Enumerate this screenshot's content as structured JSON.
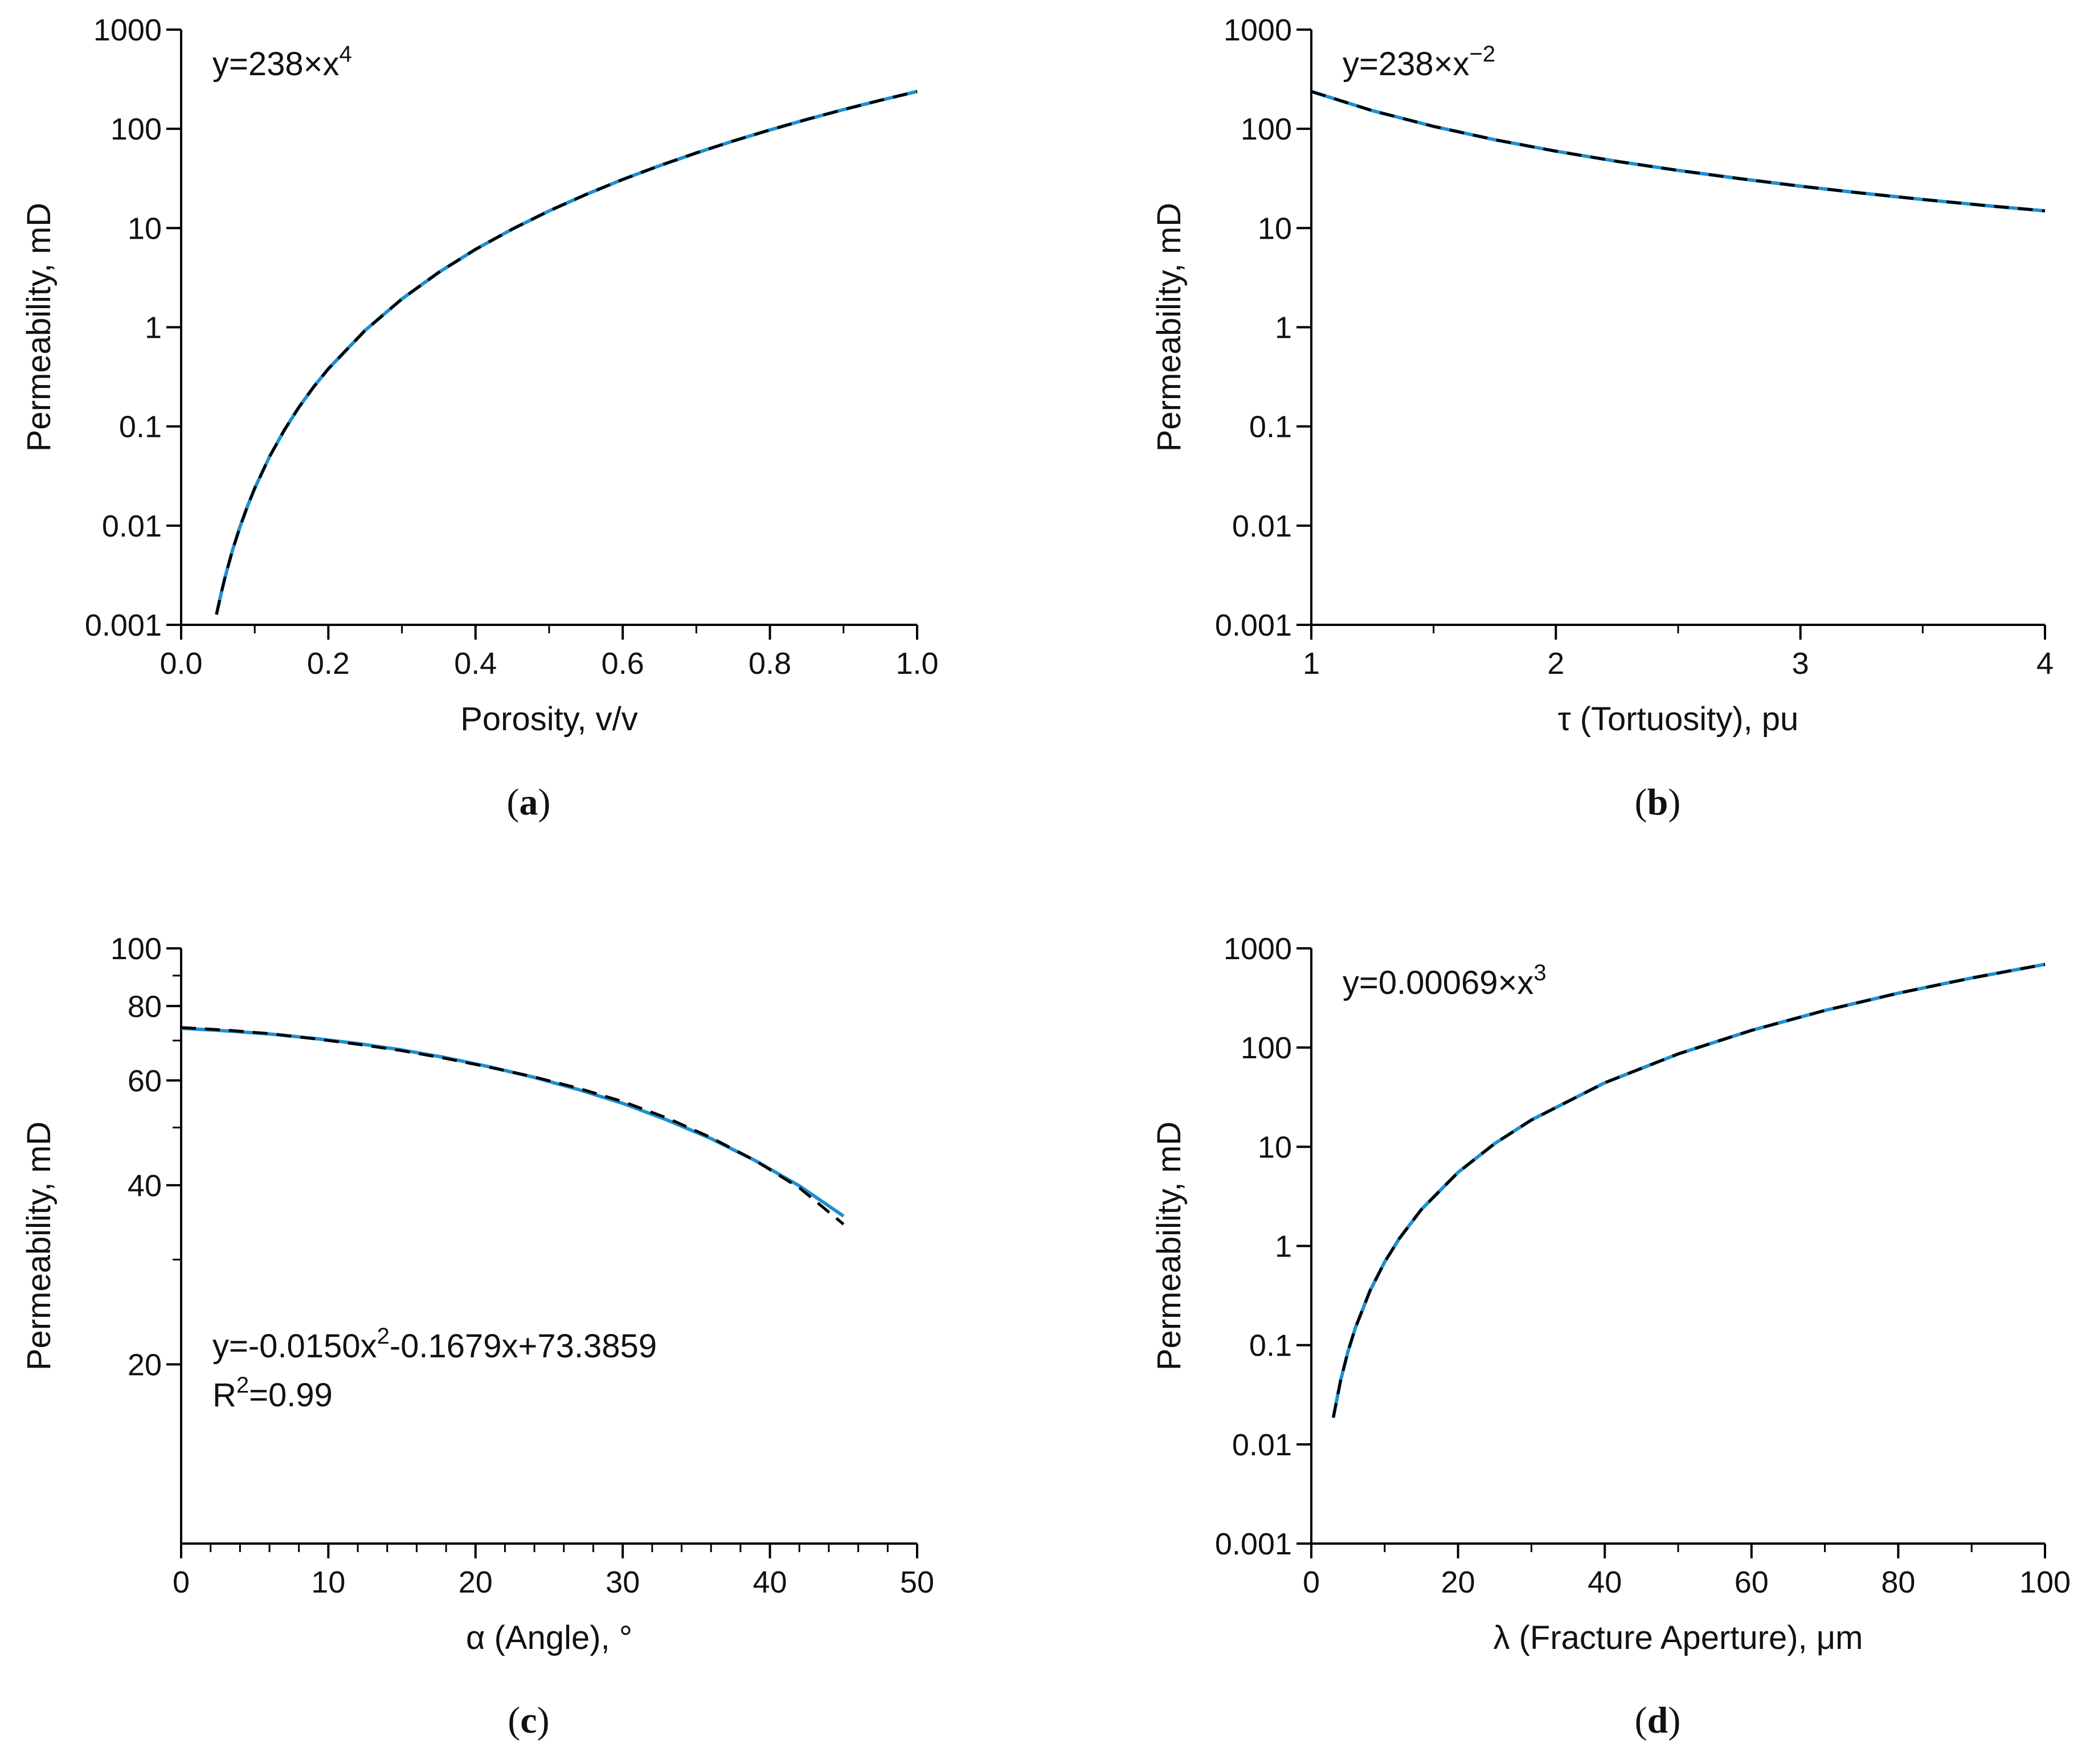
{
  "colors": {
    "fit_line": "#1f8fcf",
    "data_line": "#000000",
    "axis": "#000000"
  },
  "chart_data": [
    {
      "id": "a",
      "type": "line",
      "caption": "a",
      "xlabel": "Porosity, v/v",
      "ylabel": "Permeability, mD",
      "yscale": "log",
      "xlim": [
        0.0,
        1.0
      ],
      "ylim": [
        0.001,
        1000
      ],
      "xticks": [
        0.0,
        0.2,
        0.4,
        0.6,
        0.8,
        1.0
      ],
      "xtick_labels": [
        "0.0",
        "0.2",
        "0.4",
        "0.6",
        "0.8",
        "1.0"
      ],
      "xminor": [
        0.1,
        0.3,
        0.5,
        0.7,
        0.9
      ],
      "yticks": [
        0.001,
        0.01,
        0.1,
        1,
        10,
        100,
        1000
      ],
      "ytick_labels": [
        "0.001",
        "0.01",
        "0.1",
        "1",
        "10",
        "100",
        "1000"
      ],
      "yminor": [],
      "equation": {
        "prefix": "y=238×x",
        "sup": "4",
        "suffix": "",
        "second_line_prefix": "",
        "second_line_sup": "",
        "second_line_suffix": ""
      },
      "series": [
        {
          "name": "fit",
          "style": "solid",
          "x": [
            0.048,
            0.055,
            0.06,
            0.07,
            0.08,
            0.09,
            0.1,
            0.12,
            0.14,
            0.16,
            0.18,
            0.2,
            0.25,
            0.3,
            0.35,
            0.4,
            0.45,
            0.5,
            0.55,
            0.6,
            0.65,
            0.7,
            0.75,
            0.8,
            0.85,
            0.9,
            0.95,
            1.0
          ],
          "y": [
            0.00127,
            0.00218,
            0.00308,
            0.00571,
            0.00975,
            0.0156,
            0.0238,
            0.0494,
            0.0914,
            0.156,
            0.25,
            0.381,
            0.93,
            1.928,
            3.571,
            6.093,
            9.759,
            14.875,
            21.78,
            30.84,
            42.48,
            57.14,
            75.3,
            97.48,
            124.3,
            156.2,
            193.8,
            238.0
          ]
        },
        {
          "name": "data",
          "style": "dashed",
          "x": [
            0.048,
            0.055,
            0.06,
            0.07,
            0.08,
            0.09,
            0.1,
            0.12,
            0.14,
            0.16,
            0.18,
            0.2,
            0.25,
            0.3,
            0.35,
            0.4,
            0.45,
            0.5,
            0.55,
            0.6,
            0.65,
            0.7,
            0.75,
            0.8,
            0.85,
            0.9,
            0.95,
            1.0
          ],
          "y": [
            0.00127,
            0.00218,
            0.00308,
            0.00571,
            0.00975,
            0.0156,
            0.0238,
            0.0494,
            0.0914,
            0.156,
            0.25,
            0.381,
            0.93,
            1.928,
            3.571,
            6.093,
            9.759,
            14.875,
            21.78,
            30.84,
            42.48,
            57.14,
            75.3,
            97.48,
            124.3,
            156.2,
            193.8,
            238.0
          ]
        }
      ]
    },
    {
      "id": "b",
      "type": "line",
      "caption": "b",
      "xlabel": "τ (Tortuosity), pu",
      "ylabel": "Permeability, mD",
      "yscale": "log",
      "xlim": [
        1,
        4
      ],
      "ylim": [
        0.001,
        1000
      ],
      "xticks": [
        1,
        2,
        3,
        4
      ],
      "xtick_labels": [
        "1",
        "2",
        "3",
        "4"
      ],
      "xminor": [
        1.5,
        2.5,
        3.5
      ],
      "yticks": [
        0.001,
        0.01,
        0.1,
        1,
        10,
        100,
        1000
      ],
      "ytick_labels": [
        "0.001",
        "0.01",
        "0.1",
        "1",
        "10",
        "100",
        "1000"
      ],
      "yminor": [],
      "equation": {
        "prefix": "y=238×x",
        "sup": "−2",
        "suffix": "",
        "second_line_prefix": "",
        "second_line_sup": "",
        "second_line_suffix": ""
      },
      "series": [
        {
          "name": "fit",
          "style": "solid",
          "x": [
            1.0,
            1.25,
            1.5,
            1.75,
            2.0,
            2.25,
            2.5,
            2.75,
            3.0,
            3.25,
            3.5,
            3.75,
            4.0
          ],
          "y": [
            238.0,
            152.3,
            105.8,
            77.7,
            59.5,
            47.0,
            38.1,
            31.5,
            26.4,
            22.5,
            19.4,
            16.9,
            14.9
          ]
        },
        {
          "name": "data",
          "style": "dashed",
          "x": [
            1.0,
            1.25,
            1.5,
            1.75,
            2.0,
            2.25,
            2.5,
            2.75,
            3.0,
            3.25,
            3.5,
            3.75,
            4.0
          ],
          "y": [
            238.0,
            152.3,
            105.8,
            77.7,
            59.5,
            47.0,
            38.1,
            31.5,
            26.4,
            22.5,
            19.4,
            16.9,
            14.9
          ]
        }
      ]
    },
    {
      "id": "c",
      "type": "line",
      "caption": "c",
      "xlabel": "α (Angle), °",
      "ylabel": "Permeability, mD",
      "yscale": "log",
      "xlim": [
        0,
        50
      ],
      "ylim": [
        10,
        100
      ],
      "xticks": [
        0,
        10,
        20,
        30,
        40,
        50
      ],
      "xtick_labels": [
        "0",
        "10",
        "20",
        "30",
        "40",
        "50"
      ],
      "xminor": [
        2,
        4,
        6,
        8,
        12,
        14,
        16,
        18,
        22,
        24,
        26,
        28,
        32,
        34,
        36,
        38,
        42,
        44,
        46,
        48
      ],
      "yticks": [
        20,
        40,
        60,
        80,
        100
      ],
      "ytick_labels": [
        "20",
        "40",
        "60",
        "80",
        "100"
      ],
      "yminor": [
        30,
        50,
        70,
        90
      ],
      "equation": {
        "prefix": "y=-0.0150x",
        "sup": "2",
        "suffix": "-0.1679x+73.3859",
        "second_line_prefix": "R",
        "second_line_sup": "2",
        "second_line_suffix": "=0.99"
      },
      "series": [
        {
          "name": "fit",
          "style": "solid",
          "x": [
            0,
            3,
            6,
            9,
            12,
            15,
            18,
            21,
            24,
            27,
            30,
            33,
            36,
            39,
            42,
            45
          ],
          "y": [
            73.4,
            72.7,
            71.8,
            70.6,
            69.2,
            67.5,
            65.5,
            63.2,
            60.7,
            57.9,
            54.9,
            51.5,
            47.9,
            44.0,
            39.9,
            35.5
          ]
        },
        {
          "name": "data",
          "style": "dashed",
          "x": [
            0,
            3,
            6,
            9,
            12,
            15,
            18,
            21,
            24,
            27,
            30,
            33,
            36,
            39,
            42,
            45
          ],
          "y": [
            73.6,
            72.9,
            71.9,
            70.5,
            69.0,
            67.3,
            65.3,
            63.1,
            60.8,
            58.2,
            55.3,
            51.9,
            48.1,
            44.0,
            39.6,
            34.4
          ]
        }
      ]
    },
    {
      "id": "d",
      "type": "line",
      "caption": "d",
      "xlabel": "λ (Fracture Aperture), μm",
      "ylabel": "Permeability, mD",
      "yscale": "log",
      "xlim": [
        0,
        100
      ],
      "ylim": [
        0.001,
        1000
      ],
      "xticks": [
        0,
        20,
        40,
        60,
        80,
        100
      ],
      "xtick_labels": [
        "0",
        "20",
        "40",
        "60",
        "80",
        "100"
      ],
      "xminor": [
        10,
        30,
        50,
        70,
        90
      ],
      "yticks": [
        0.001,
        0.01,
        0.1,
        1,
        10,
        100,
        1000
      ],
      "ytick_labels": [
        "0.001",
        "0.01",
        "0.1",
        "1",
        "10",
        "100",
        "1000"
      ],
      "yminor": [],
      "equation": {
        "prefix": "y=0.00069×x",
        "sup": "3",
        "suffix": "",
        "second_line_prefix": "",
        "second_line_sup": "",
        "second_line_suffix": ""
      },
      "series": [
        {
          "name": "fit",
          "style": "solid",
          "x": [
            3,
            4,
            5,
            6,
            8,
            10,
            12,
            15,
            20,
            25,
            30,
            40,
            50,
            60,
            70,
            80,
            90,
            100
          ],
          "y": [
            0.0186,
            0.0442,
            0.0863,
            0.149,
            0.353,
            0.69,
            1.19,
            2.33,
            5.52,
            10.78,
            18.63,
            44.16,
            86.25,
            149.0,
            236.7,
            353.3,
            503.0,
            690.0
          ]
        },
        {
          "name": "data",
          "style": "dashed",
          "x": [
            3,
            4,
            5,
            6,
            8,
            10,
            12,
            15,
            20,
            25,
            30,
            40,
            50,
            60,
            70,
            80,
            90,
            100
          ],
          "y": [
            0.0186,
            0.0442,
            0.0863,
            0.149,
            0.353,
            0.69,
            1.19,
            2.33,
            5.52,
            10.78,
            18.63,
            44.16,
            86.25,
            149.0,
            236.7,
            353.3,
            503.0,
            690.0
          ]
        }
      ]
    }
  ]
}
